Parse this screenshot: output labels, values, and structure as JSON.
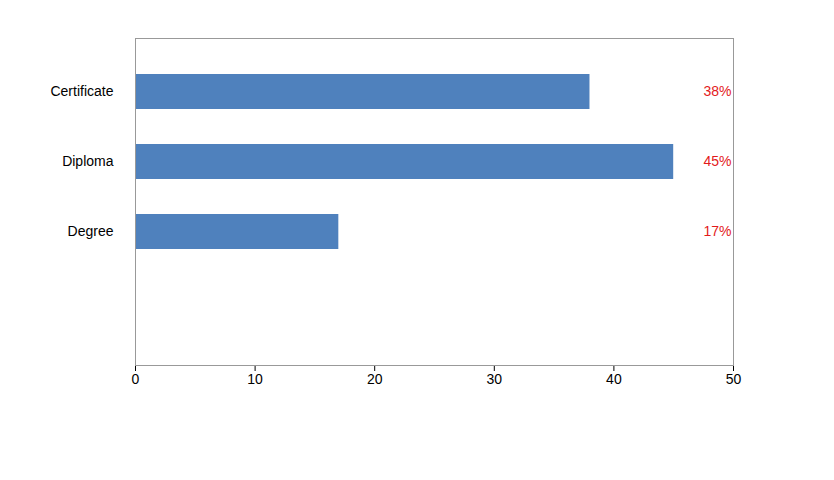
{
  "chart_data": {
    "type": "bar",
    "orientation": "horizontal",
    "categories": [
      "Certificate",
      "Diploma",
      "Degree"
    ],
    "values": [
      38,
      45,
      17
    ],
    "value_labels": [
      "38%",
      "45%",
      "17%"
    ],
    "data_labels": true,
    "color": "#4F81BD",
    "xlim": [
      0,
      50
    ],
    "xticks": [
      0,
      10,
      20,
      30,
      40,
      50
    ],
    "grid": false
  }
}
